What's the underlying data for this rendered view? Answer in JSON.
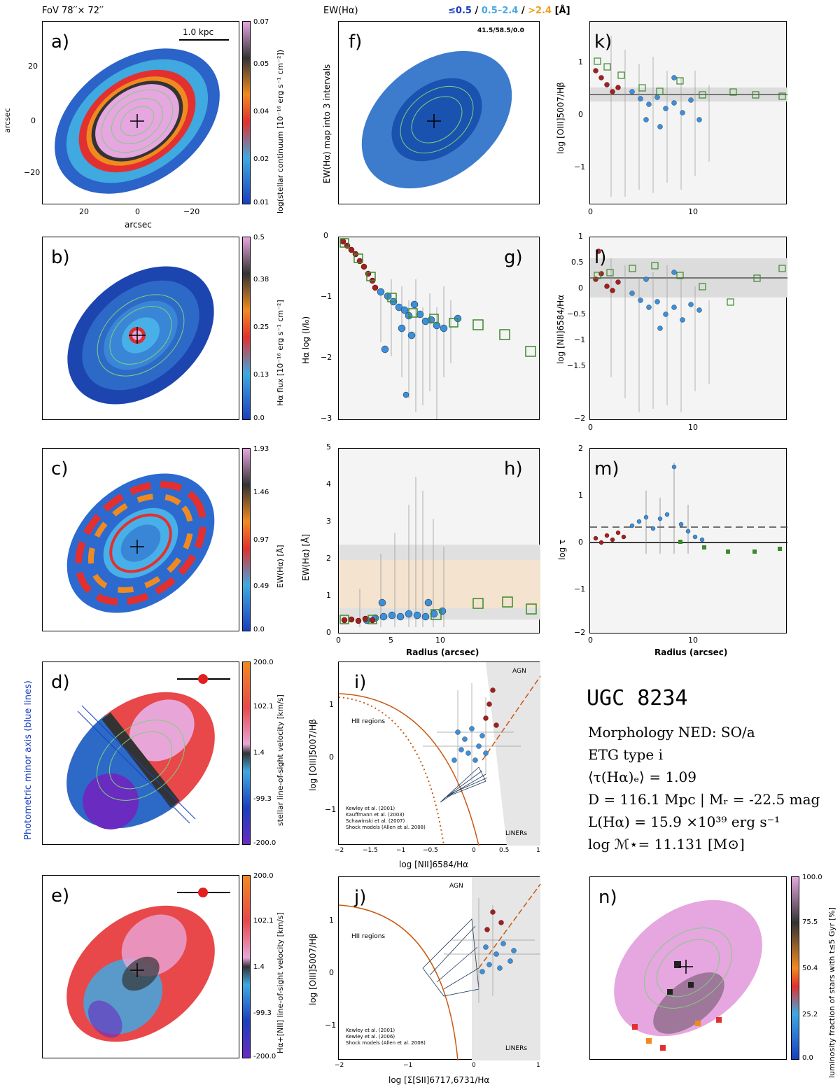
{
  "header": {
    "fov": "FoV 78′′× 72′′",
    "ew_title": "EW(Hα)",
    "ew_key_lt": "≤0.5",
    "ew_key_sep1": "/",
    "ew_key_mid": "0.5–2.4",
    "ew_key_sep2": "/",
    "ew_key_gt": ">2.4",
    "ew_key_unit": "[Å]",
    "ew_fractions": "41.5/58.5/0.0",
    "kpc": "1.0 kpc"
  },
  "colors": {
    "lt": "#1a3fbf",
    "mid": "#4ba8e0",
    "gt": "#f0a020",
    "red": "#a02020",
    "green": "#3a8a2a",
    "blue": "#3d8fd9"
  },
  "panels": {
    "a": {
      "label": "a)",
      "cbar": "log(stellar continuum [10⁻¹⁶ erg s⁻¹ cm⁻²])",
      "ticks": [
        "0.07",
        "0.05",
        "0.04",
        "0.02",
        "0.01"
      ],
      "xlabel": "arcsec",
      "ylabel": "arcsec",
      "xticks": [
        "20",
        "0",
        "−20"
      ],
      "yticks": [
        "20",
        "0",
        "−20"
      ]
    },
    "b": {
      "label": "b)",
      "cbar": "Hα flux [10⁻¹⁶ erg s⁻¹ cm⁻²]",
      "ticks": [
        "0.5",
        "0.38",
        "0.25",
        "0.13",
        "0.0"
      ]
    },
    "c": {
      "label": "c)",
      "cbar": "EW(Hα) [Å]",
      "ticks": [
        "1.93",
        "1.46",
        "0.97",
        "0.49",
        "0.0"
      ]
    },
    "d": {
      "label": "d)",
      "cbar": "stellar line-of-sight velocity [km/s]",
      "ticks": [
        "200.0",
        "102.1",
        "1.4",
        "-99.3",
        "-200.0"
      ],
      "side": "Photometric minor axis (blue lines)"
    },
    "e": {
      "label": "e)",
      "cbar": "Hα+[NII] line-of-sight velocity [km/s]",
      "ticks": [
        "200.0",
        "102.1",
        "1.4",
        "-99.3",
        "-200.0"
      ]
    },
    "f": {
      "label": "f)",
      "ylabel": "EW(Hα) map into 3 intervals"
    },
    "g": {
      "label": "g)",
      "ylabel": "Hα log (I/I₀)",
      "yticks": [
        "0",
        "−1",
        "−2",
        "−3"
      ]
    },
    "h": {
      "label": "h)",
      "ylabel": "EW(Hα) [Å]",
      "yticks": [
        "5",
        "4",
        "3",
        "2",
        "1",
        "0"
      ],
      "xticks": [
        "0",
        "5",
        "10"
      ],
      "xlabel": "Radius (arcsec)"
    },
    "i": {
      "label": "i)",
      "ylabel": "log [OIII]5007/Hβ",
      "xlabel": "log [NII]6584/Hα",
      "xticks": [
        "−2",
        "−1.5",
        "−1",
        "−0.5",
        "0",
        "0.5",
        "1"
      ],
      "yticks": [
        "1",
        "0",
        "−1"
      ],
      "agn": "AGN",
      "hii": "HII regions",
      "liners": "LINERs",
      "legend": [
        "Kewley et al. (2001)",
        "Kauffmann et al. (2003)",
        "Schawinski et al. (2007)",
        "Shock models (Allen et al. 2008)"
      ]
    },
    "j": {
      "label": "j)",
      "ylabel": "log [OIII]5007/Hβ",
      "xlabel": "log [Σ[SII]6717,6731/Hα",
      "xticks": [
        "−2",
        "−1",
        "0",
        "1"
      ],
      "yticks": [
        "1",
        "0",
        "−1"
      ],
      "agn": "AGN",
      "hii": "HII regions",
      "liners": "LINERs",
      "legend": [
        "Kewley et al. (2001)",
        "Kewley et al. (2006)",
        "Shock models (Allen et al. 2008)"
      ]
    },
    "k": {
      "label": "k)",
      "ylabel": "log [OIII]5007/Hβ",
      "yticks": [
        "1",
        "0",
        "−1"
      ],
      "xticks": [
        "0",
        "10"
      ]
    },
    "l": {
      "label": "l)",
      "ylabel": "log [NII]6584/Hα",
      "yticks": [
        "1",
        "0.5",
        "0",
        "−0.5",
        "−1",
        "−1.5",
        "−2"
      ],
      "xticks": [
        "0",
        "10"
      ]
    },
    "m": {
      "label": "m)",
      "ylabel": "log τ",
      "yticks": [
        "2",
        "1",
        "0",
        "−1",
        "−2"
      ],
      "xticks": [
        "0",
        "10"
      ],
      "xlabel": "Radius (arcsec)"
    },
    "n": {
      "label": "n)",
      "cbar": "luminosity fraction of stars with t≤5 Gyr [%]",
      "ticks": [
        "100.0",
        "75.5",
        "50.4",
        "25.2",
        "0.0"
      ]
    }
  },
  "galaxy": {
    "name": "UGC 8234",
    "morph": "Morphology NED: SO/a",
    "etg": "ETG type i",
    "tau": "⟨τ(Hα)ₑ⟩ = 1.09",
    "dist": "D = 116.1 Mpc | Mᵣ = -22.5 mag",
    "lha": "L(Hα) = 15.9 ×10³⁹ erg s⁻¹",
    "mass": "log ℳ⋆= 11.131 [M⊙]"
  }
}
